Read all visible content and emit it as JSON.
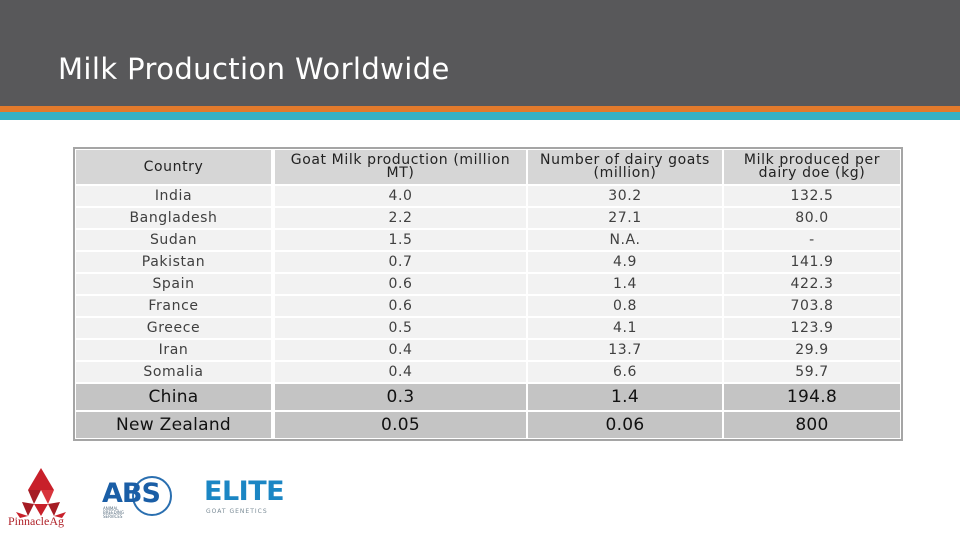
{
  "slide": {
    "title": "Milk Production Worldwide"
  },
  "table": {
    "headers": {
      "country": "Country",
      "production": "Goat Milk production (million MT)",
      "goats": "Number of dairy goats (million)",
      "per_doe": "Milk produced per dairy doe (kg)"
    },
    "rows": [
      {
        "country": "India",
        "production": "4.0",
        "goats": "30.2",
        "per_doe": "132.5"
      },
      {
        "country": "Bangladesh",
        "production": "2.2",
        "goats": "27.1",
        "per_doe": "80.0"
      },
      {
        "country": "Sudan",
        "production": "1.5",
        "goats": "N.A.",
        "per_doe": "-"
      },
      {
        "country": "Pakistan",
        "production": "0.7",
        "goats": "4.9",
        "per_doe": "141.9"
      },
      {
        "country": "Spain",
        "production": "0.6",
        "goats": "1.4",
        "per_doe": "422.3"
      },
      {
        "country": "France",
        "production": "0.6",
        "goats": "0.8",
        "per_doe": "703.8"
      },
      {
        "country": "Greece",
        "production": "0.5",
        "goats": "4.1",
        "per_doe": "123.9"
      },
      {
        "country": "Iran",
        "production": "0.4",
        "goats": "13.7",
        "per_doe": "29.9"
      },
      {
        "country": "Somalia",
        "production": "0.4",
        "goats": "6.6",
        "per_doe": "59.7"
      },
      {
        "country": "China",
        "production": "0.3",
        "goats": "1.4",
        "per_doe": "194.8"
      },
      {
        "country": "New Zealand",
        "production": "0.05",
        "goats": "0.06",
        "per_doe": "800"
      }
    ]
  },
  "logos": {
    "pinnacle": "PinnacleAg",
    "abs": "ABS",
    "abs_sub": "ANIMAL BREEDING SERVICES",
    "elite": "ELITE",
    "elite_sub": "GOAT GENETICS"
  },
  "colors": {
    "banner": "#58585a",
    "stripe_orange": "#e27a2c",
    "stripe_teal": "#35b1c4"
  }
}
